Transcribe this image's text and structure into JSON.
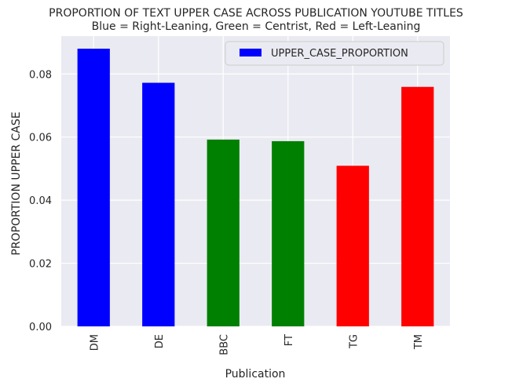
{
  "chart_data": {
    "type": "bar",
    "title": "PROPORTION OF TEXT UPPER CASE ACROSS PUBLICATION YOUTUBE TITLES",
    "subtitle": "Blue = Right-Leaning, Green = Centrist, Red = Left-Leaning",
    "xlabel": "Publication",
    "ylabel": "PROPORTION UPPER CASE",
    "categories": [
      "DM",
      "DE",
      "BBC",
      "FT",
      "TG",
      "TM"
    ],
    "series": [
      {
        "name": "UPPER_CASE_PROPORTION",
        "values": [
          0.088,
          0.0772,
          0.0592,
          0.0587,
          0.0509,
          0.0759
        ],
        "colors": [
          "#0000ff",
          "#0000ff",
          "#008000",
          "#008000",
          "#ff0000",
          "#ff0000"
        ]
      }
    ],
    "ylim": [
      0,
      0.092
    ],
    "yticks": [
      0.0,
      0.02,
      0.04,
      0.06,
      0.08
    ],
    "ytick_labels": [
      "0.00",
      "0.02",
      "0.04",
      "0.06",
      "0.08"
    ],
    "grid": true,
    "legend_position": "top-right",
    "legend_color": "#0000ff",
    "plot_background": "#eaeaf2"
  }
}
